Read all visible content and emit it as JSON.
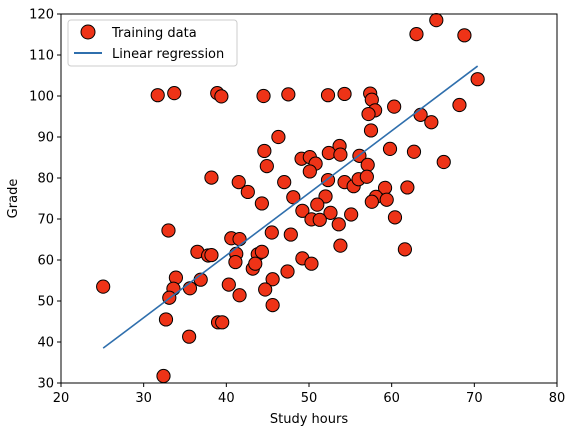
{
  "chart_data": {
    "type": "scatter",
    "xlabel": "Study hours",
    "ylabel": "Grade",
    "xlim": [
      20,
      80
    ],
    "ylim": [
      30,
      120
    ],
    "xticks": [
      20,
      30,
      40,
      50,
      60,
      70,
      80
    ],
    "yticks": [
      30,
      40,
      50,
      60,
      70,
      80,
      90,
      100,
      110,
      120
    ],
    "grid": false,
    "legend": {
      "placement": "top-left",
      "entries": [
        "Training data",
        "Linear regression"
      ]
    },
    "colors": {
      "points_fill": "#ee3317",
      "points_edge": "#000000",
      "regression_line": "#2f6fad"
    },
    "series": [
      {
        "name": "Training data",
        "kind": "scatter",
        "points": [
          [
            25.1,
            53.5
          ],
          [
            31.7,
            100.2
          ],
          [
            33.7,
            100.7
          ],
          [
            38.9,
            100.7
          ],
          [
            39.4,
            99.9
          ],
          [
            44.5,
            100.0
          ],
          [
            47.5,
            100.4
          ],
          [
            52.3,
            100.2
          ],
          [
            54.3,
            100.5
          ],
          [
            57.4,
            100.6
          ],
          [
            63.0,
            115.1
          ],
          [
            65.4,
            118.5
          ],
          [
            68.8,
            114.8
          ],
          [
            70.4,
            104.1
          ],
          [
            57.6,
            99.1
          ],
          [
            58.0,
            96.5
          ],
          [
            60.3,
            97.4
          ],
          [
            68.2,
            97.8
          ],
          [
            57.2,
            95.6
          ],
          [
            63.5,
            95.4
          ],
          [
            64.8,
            93.6
          ],
          [
            57.5,
            91.6
          ],
          [
            46.3,
            90.0
          ],
          [
            44.6,
            86.6
          ],
          [
            59.8,
            87.1
          ],
          [
            53.7,
            87.8
          ],
          [
            52.4,
            86.1
          ],
          [
            53.8,
            85.7
          ],
          [
            56.1,
            85.4
          ],
          [
            49.1,
            84.7
          ],
          [
            50.1,
            85.1
          ],
          [
            50.8,
            83.5
          ],
          [
            62.7,
            86.4
          ],
          [
            66.3,
            83.9
          ],
          [
            44.9,
            82.9
          ],
          [
            57.1,
            83.2
          ],
          [
            50.1,
            81.6
          ],
          [
            38.2,
            80.1
          ],
          [
            41.5,
            79.0
          ],
          [
            47.0,
            79.0
          ],
          [
            52.3,
            79.5
          ],
          [
            54.3,
            79.0
          ],
          [
            55.4,
            78.0
          ],
          [
            56.0,
            79.7
          ],
          [
            57.0,
            80.3
          ],
          [
            59.2,
            77.6
          ],
          [
            61.9,
            77.7
          ],
          [
            42.6,
            76.6
          ],
          [
            48.1,
            75.3
          ],
          [
            52.0,
            75.5
          ],
          [
            58.1,
            75.4
          ],
          [
            59.4,
            74.7
          ],
          [
            44.3,
            73.8
          ],
          [
            51.0,
            73.5
          ],
          [
            57.6,
            74.2
          ],
          [
            49.2,
            72.0
          ],
          [
            52.6,
            71.5
          ],
          [
            55.1,
            71.1
          ],
          [
            60.4,
            70.4
          ],
          [
            50.3,
            69.9
          ],
          [
            51.3,
            69.8
          ],
          [
            53.6,
            68.7
          ],
          [
            33.0,
            67.2
          ],
          [
            45.5,
            66.7
          ],
          [
            47.8,
            66.2
          ],
          [
            40.6,
            65.3
          ],
          [
            41.6,
            65.1
          ],
          [
            53.8,
            63.5
          ],
          [
            61.6,
            62.6
          ],
          [
            36.5,
            62.0
          ],
          [
            37.8,
            61.1
          ],
          [
            38.2,
            61.2
          ],
          [
            41.2,
            61.5
          ],
          [
            43.8,
            61.4
          ],
          [
            44.3,
            62.0
          ],
          [
            49.2,
            60.4
          ],
          [
            41.1,
            59.5
          ],
          [
            43.2,
            57.9
          ],
          [
            43.5,
            59.1
          ],
          [
            47.4,
            57.2
          ],
          [
            50.3,
            59.1
          ],
          [
            33.9,
            55.7
          ],
          [
            36.9,
            55.2
          ],
          [
            45.6,
            55.3
          ],
          [
            33.6,
            53.0
          ],
          [
            35.6,
            53.1
          ],
          [
            40.3,
            54.0
          ],
          [
            44.7,
            52.8
          ],
          [
            33.1,
            50.8
          ],
          [
            41.6,
            51.4
          ],
          [
            45.6,
            49.0
          ],
          [
            32.7,
            45.5
          ],
          [
            39.0,
            44.8
          ],
          [
            39.5,
            44.8
          ],
          [
            35.5,
            41.3
          ],
          [
            32.4,
            31.7
          ]
        ]
      },
      {
        "name": "Linear regression",
        "kind": "line",
        "points": [
          [
            25.1,
            38.5
          ],
          [
            70.4,
            107.3
          ]
        ]
      }
    ]
  }
}
